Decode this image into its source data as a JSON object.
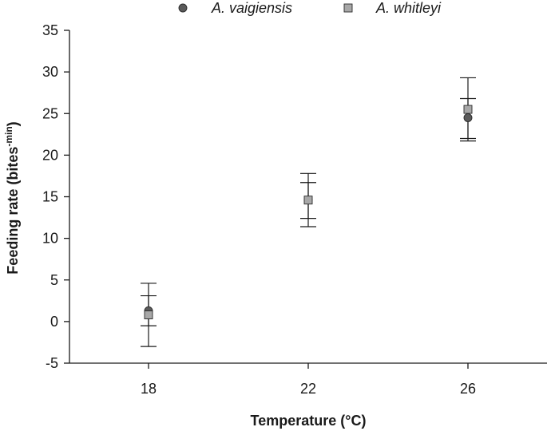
{
  "chart_data": {
    "type": "scatter",
    "xlabel": "Temperature (°C)",
    "ylabel_main": "Feeding rate (bites",
    "ylabel_sup": "-min",
    "ylabel_close": ")",
    "ylim": [
      -5,
      35
    ],
    "yticks": [
      -5,
      0,
      5,
      10,
      15,
      20,
      25,
      30,
      35
    ],
    "categories": [
      "18",
      "22",
      "26"
    ],
    "grid": false,
    "legend_position": "top",
    "series": [
      {
        "name": "A. vaigiensis",
        "marker": "circle",
        "color": "#5a5a5a",
        "values": [
          1.3,
          14.6,
          24.5
        ],
        "err_low": [
          -0.5,
          12.4,
          21.7
        ],
        "err_high": [
          3.1,
          16.7,
          26.8
        ]
      },
      {
        "name": "A. whitleyi",
        "marker": "square",
        "color": "#a8a8a8",
        "values": [
          0.8,
          14.6,
          25.5
        ],
        "err_low": [
          -3.0,
          11.4,
          22.0
        ],
        "err_high": [
          4.6,
          17.8,
          29.3
        ]
      }
    ]
  }
}
